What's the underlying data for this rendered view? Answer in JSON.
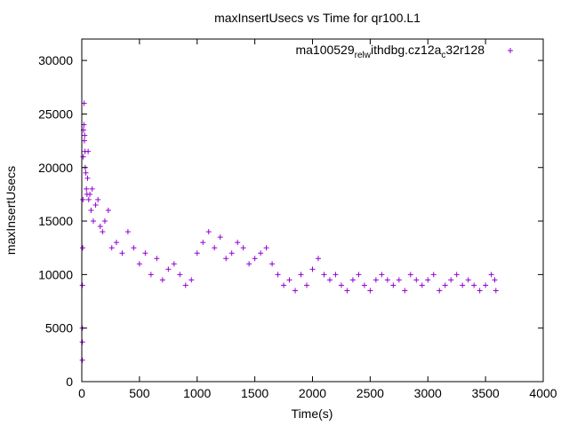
{
  "chart_data": {
    "type": "scatter",
    "title": "maxInsertUsecs vs Time for qr100.L1",
    "xlabel": "Time(s)",
    "ylabel": "maxInsertUsecs",
    "xlim": [
      0,
      4000
    ],
    "ylim": [
      0,
      32000
    ],
    "xticks": [
      0,
      500,
      1000,
      1500,
      2000,
      2500,
      3000,
      3500,
      4000
    ],
    "yticks": [
      0,
      5000,
      10000,
      15000,
      20000,
      25000,
      30000
    ],
    "grid": false,
    "legend_position": "top-right",
    "color": "#9400D3",
    "marker": "+",
    "series": [
      {
        "name": "ma100529_rel_withdbg.cz12a_c32r128",
        "legend": {
          "parts": [
            {
              "text": "ma100529",
              "sub": false
            },
            {
              "text": "rel",
              "sub": true
            },
            {
              "text": "w",
              "sub": true
            },
            {
              "text": "ithdbg.cz12a",
              "sub": false
            },
            {
              "text": "c",
              "sub": true
            },
            {
              "text": "32r128",
              "sub": false
            }
          ]
        },
        "x": [
          5,
          5,
          5,
          5,
          8,
          10,
          12,
          15,
          18,
          20,
          22,
          25,
          28,
          30,
          35,
          40,
          45,
          50,
          55,
          60,
          70,
          80,
          90,
          100,
          120,
          140,
          160,
          180,
          200,
          230,
          260,
          300,
          350,
          400,
          450,
          500,
          550,
          600,
          650,
          700,
          750,
          800,
          850,
          900,
          950,
          1000,
          1050,
          1100,
          1150,
          1200,
          1250,
          1300,
          1350,
          1400,
          1450,
          1500,
          1550,
          1600,
          1650,
          1700,
          1750,
          1800,
          1850,
          1900,
          1950,
          2000,
          2050,
          2100,
          2150,
          2200,
          2250,
          2300,
          2350,
          2400,
          2450,
          2500,
          2550,
          2600,
          2650,
          2700,
          2750,
          2800,
          2850,
          2900,
          2950,
          3000,
          3050,
          3100,
          3150,
          3200,
          3250,
          3300,
          3350,
          3400,
          3450,
          3500,
          3550,
          3580,
          3590
        ],
        "y": [
          2000,
          3700,
          5000,
          9000,
          12500,
          17000,
          21000,
          23500,
          24000,
          26000,
          22500,
          23000,
          21500,
          20000,
          19500,
          18000,
          17500,
          19000,
          21500,
          17000,
          17500,
          16000,
          18000,
          15000,
          16500,
          17000,
          14500,
          14000,
          15000,
          16000,
          12500,
          13000,
          12000,
          14000,
          12500,
          11000,
          12000,
          10000,
          11500,
          9500,
          10500,
          11000,
          10000,
          9000,
          9500,
          12000,
          13000,
          14000,
          12500,
          13500,
          11500,
          12000,
          13000,
          12500,
          11000,
          11500,
          12000,
          12500,
          11000,
          10000,
          9000,
          9500,
          8500,
          10000,
          9000,
          10500,
          11500,
          10000,
          9500,
          10000,
          9000,
          8500,
          9500,
          10000,
          9000,
          8500,
          9500,
          10000,
          9500,
          9000,
          9500,
          8500,
          10000,
          9500,
          9000,
          9500,
          10000,
          8500,
          9000,
          9500,
          10000,
          9000,
          9500,
          9000,
          8500,
          9000,
          10000,
          9500,
          8500
        ]
      }
    ]
  }
}
